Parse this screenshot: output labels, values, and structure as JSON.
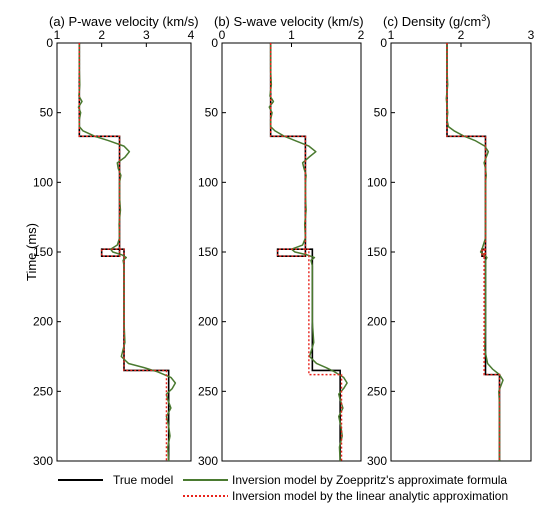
{
  "chart_data": {
    "type": "line",
    "ylabel": "Time (ms)",
    "ylim": [
      0,
      300
    ],
    "yticks": [
      0,
      50,
      100,
      150,
      200,
      250,
      300
    ],
    "panels": [
      {
        "title": "(a) P-wave velocity (km/s)",
        "xlim": [
          1,
          4
        ],
        "xticks": [
          1,
          2,
          3,
          4
        ],
        "true_model": {
          "depths": [
            0,
            67,
            153,
            148,
            235,
            300
          ],
          "values": [
            1.5,
            2.4,
            2.0,
            2.5,
            3.5
          ]
        },
        "linear": {
          "depths": [
            0,
            67,
            153,
            148,
            235,
            300
          ],
          "values": [
            1.5,
            2.4,
            2.0,
            2.5,
            3.45
          ]
        },
        "zoeppritz": {
          "t": [
            0,
            20,
            30,
            38,
            42,
            46,
            50,
            55,
            60,
            63,
            67,
            70,
            74,
            78,
            82,
            86,
            90,
            95,
            100,
            110,
            120,
            130,
            140,
            145,
            148,
            150,
            152,
            154,
            156,
            160,
            170,
            180,
            200,
            215,
            225,
            230,
            233,
            236,
            240,
            244,
            248,
            252,
            256,
            262,
            268,
            275,
            282,
            290,
            300
          ],
          "v": [
            1.5,
            1.5,
            1.51,
            1.49,
            1.56,
            1.48,
            1.53,
            1.5,
            1.5,
            1.58,
            1.85,
            2.15,
            2.5,
            2.62,
            2.52,
            2.35,
            2.37,
            2.43,
            2.4,
            2.4,
            2.42,
            2.39,
            2.4,
            2.35,
            2.2,
            2.25,
            2.45,
            2.55,
            2.48,
            2.5,
            2.5,
            2.5,
            2.5,
            2.52,
            2.44,
            2.6,
            2.95,
            3.25,
            3.55,
            3.65,
            3.58,
            3.45,
            3.48,
            3.55,
            3.45,
            3.5,
            3.53,
            3.48,
            3.5
          ]
        }
      },
      {
        "title": "(b) S-wave velocity (km/s)",
        "xlim": [
          0,
          2
        ],
        "xticks": [
          0,
          1,
          2
        ],
        "true_model": {
          "depths": [
            0,
            67,
            153,
            148,
            235,
            300
          ],
          "values": [
            0.7,
            1.2,
            0.8,
            1.3,
            1.7
          ]
        },
        "linear": {
          "depths": [
            0,
            67,
            153,
            148,
            238,
            300
          ],
          "values": [
            0.7,
            1.2,
            0.8,
            1.25,
            1.72
          ]
        },
        "zoeppritz": {
          "t": [
            0,
            20,
            30,
            38,
            42,
            46,
            50,
            55,
            60,
            63,
            67,
            70,
            74,
            78,
            82,
            86,
            90,
            95,
            100,
            110,
            120,
            130,
            140,
            145,
            148,
            150,
            152,
            154,
            156,
            160,
            170,
            180,
            200,
            215,
            225,
            230,
            233,
            236,
            240,
            244,
            248,
            252,
            256,
            262,
            268,
            275,
            282,
            290,
            300
          ],
          "v": [
            0.7,
            0.7,
            0.71,
            0.69,
            0.74,
            0.68,
            0.72,
            0.7,
            0.7,
            0.76,
            0.9,
            1.05,
            1.25,
            1.35,
            1.25,
            1.16,
            1.18,
            1.21,
            1.2,
            1.2,
            1.21,
            1.19,
            1.2,
            1.16,
            1.0,
            1.05,
            1.22,
            1.33,
            1.28,
            1.3,
            1.3,
            1.3,
            1.3,
            1.32,
            1.26,
            1.36,
            1.5,
            1.62,
            1.75,
            1.8,
            1.75,
            1.68,
            1.7,
            1.74,
            1.68,
            1.71,
            1.73,
            1.69,
            1.7
          ]
        }
      },
      {
        "title": "(c) Density (g/cm",
        "title_sup": "3",
        "title_end": ")",
        "xlim": [
          1,
          3
        ],
        "xticks": [
          1,
          2,
          3
        ],
        "true_model": {
          "depths": [
            0,
            67,
            153,
            148,
            238,
            300
          ],
          "values": [
            1.8,
            2.35,
            2.3,
            2.35,
            2.55
          ]
        },
        "linear": {
          "depths": [
            0,
            67,
            153,
            148,
            238,
            300
          ],
          "values": [
            1.8,
            2.35,
            2.3,
            2.33,
            2.55
          ]
        },
        "zoeppritz": {
          "t": [
            0,
            20,
            30,
            40,
            50,
            55,
            60,
            63,
            67,
            70,
            74,
            78,
            82,
            86,
            90,
            95,
            100,
            120,
            140,
            148,
            150,
            152,
            154,
            156,
            160,
            180,
            200,
            220,
            230,
            234,
            238,
            242,
            246,
            250,
            260,
            280,
            300
          ],
          "v": [
            1.8,
            1.8,
            1.81,
            1.79,
            1.81,
            1.8,
            1.82,
            1.9,
            2.05,
            2.2,
            2.34,
            2.39,
            2.36,
            2.33,
            2.35,
            2.36,
            2.35,
            2.35,
            2.35,
            2.3,
            2.28,
            2.33,
            2.37,
            2.35,
            2.35,
            2.35,
            2.35,
            2.34,
            2.38,
            2.45,
            2.55,
            2.6,
            2.57,
            2.54,
            2.55,
            2.55,
            2.55
          ]
        }
      }
    ],
    "legend": [
      {
        "label": "True model",
        "color": "#000000",
        "style": "solid"
      },
      {
        "label": "Inversion model by Zoeppritz's approximate formula",
        "color": "#4a7a30",
        "style": "solid"
      },
      {
        "label": "Inversion model by the linear analytic approximation",
        "color": "#e8231c",
        "style": "dotted"
      }
    ]
  }
}
